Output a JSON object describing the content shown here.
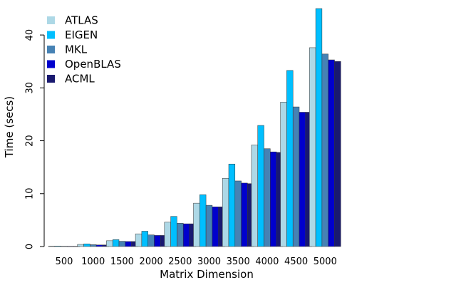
{
  "chart_data": {
    "type": "bar",
    "xlabel": "Matrix Dimension",
    "ylabel": "Time (secs)",
    "ylim": [
      0,
      45
    ],
    "yticks": [
      "0",
      "10",
      "20",
      "30",
      "40"
    ],
    "grid": false,
    "legend_position": "top-left",
    "categories": [
      "500",
      "1000",
      "1500",
      "2000",
      "2500",
      "3000",
      "3500",
      "4000",
      "4500",
      "5000"
    ],
    "series": [
      {
        "name": "ATLAS",
        "color": "#add8e6",
        "values": [
          0.08,
          0.4,
          1.1,
          2.4,
          4.6,
          8.2,
          12.9,
          19.2,
          27.3,
          37.6
        ]
      },
      {
        "name": "EIGEN",
        "color": "#00bfff",
        "values": [
          0.1,
          0.5,
          1.3,
          2.9,
          5.7,
          9.8,
          15.6,
          22.9,
          33.3,
          45.0
        ]
      },
      {
        "name": "MKL",
        "color": "#4682b4",
        "values": [
          0.06,
          0.35,
          1.0,
          2.2,
          4.4,
          7.8,
          12.4,
          18.5,
          26.4,
          36.4
        ]
      },
      {
        "name": "OpenBLAS",
        "color": "#0000cd",
        "values": [
          0.05,
          0.3,
          0.95,
          2.1,
          4.3,
          7.5,
          12.0,
          17.9,
          25.4,
          35.3
        ]
      },
      {
        "name": "ACML",
        "color": "#191970",
        "values": [
          0.05,
          0.3,
          0.95,
          2.1,
          4.3,
          7.5,
          11.9,
          17.8,
          25.4,
          35.0
        ]
      }
    ]
  }
}
